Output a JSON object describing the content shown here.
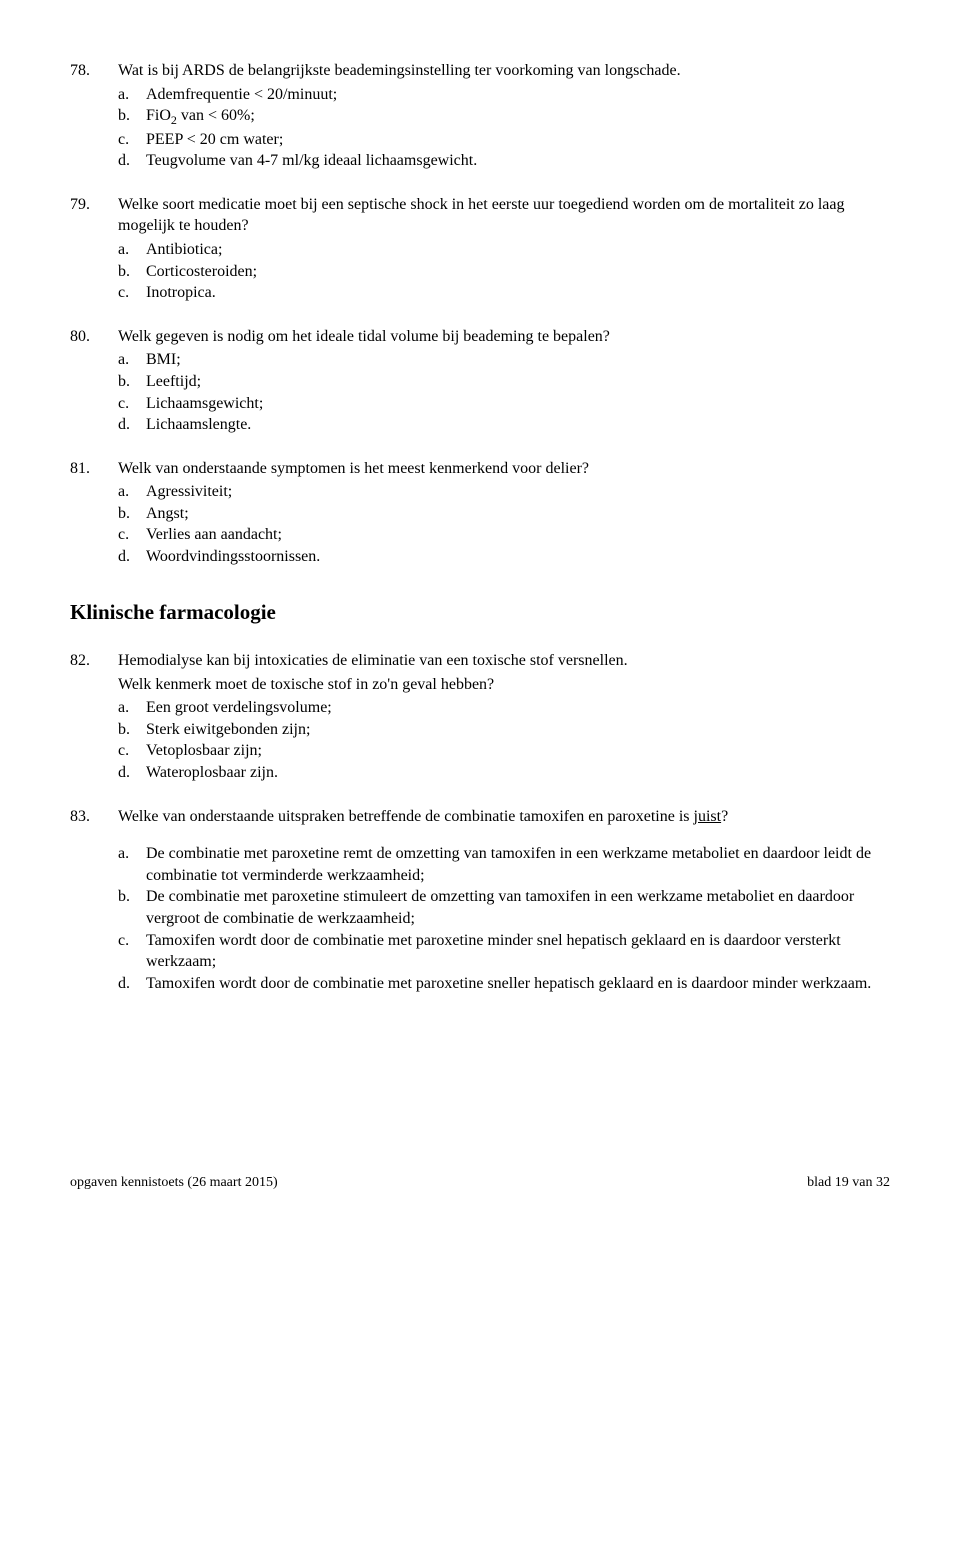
{
  "questions": [
    {
      "num": "78.",
      "stem_parts": [
        "Wat is bij ARDS  de belangrijkste beademingsinstelling ter voorkoming van longschade."
      ],
      "options": [
        {
          "l": "a.",
          "t": "Ademfrequentie < 20/minuut;"
        },
        {
          "l": "b.",
          "t_html": "FiO<sub>2</sub> van < 60%;"
        },
        {
          "l": "c.",
          "t": "PEEP < 20 cm water;"
        },
        {
          "l": "d.",
          "t": "Teugvolume van 4-7 ml/kg ideaal lichaamsgewicht."
        }
      ]
    },
    {
      "num": "79.",
      "stem_parts": [
        "Welke soort medicatie moet bij een septische shock in het eerste uur toegediend worden om de mortaliteit zo laag mogelijk te houden?"
      ],
      "options": [
        {
          "l": "a.",
          "t": "Antibiotica;"
        },
        {
          "l": "b.",
          "t": "Corticosteroiden;"
        },
        {
          "l": "c.",
          "t": "Inotropica."
        }
      ]
    },
    {
      "num": "80.",
      "stem_parts": [
        "Welk gegeven is nodig om het ideale tidal volume bij beademing te bepalen?"
      ],
      "options": [
        {
          "l": "a.",
          "t": "BMI;"
        },
        {
          "l": "b.",
          "t": "Leeftijd;"
        },
        {
          "l": "c.",
          "t": "Lichaamsgewicht;"
        },
        {
          "l": "d.",
          "t": "Lichaamslengte."
        }
      ]
    },
    {
      "num": "81.",
      "stem_parts": [
        "Welk van onderstaande symptomen is het meest kenmerkend voor delier?"
      ],
      "options": [
        {
          "l": "a.",
          "t": "Agressiviteit;"
        },
        {
          "l": "b.",
          "t": "Angst;"
        },
        {
          "l": "c.",
          "t": "Verlies aan aandacht;"
        },
        {
          "l": "d.",
          "t": "Woordvindingsstoornissen."
        }
      ]
    }
  ],
  "section_heading": "Klinische farmacologie",
  "questions2": [
    {
      "num": "82.",
      "stem_parts": [
        "Hemodialyse kan bij intoxicaties de eliminatie van een toxische stof versnellen.",
        "Welk kenmerk moet de toxische stof in zo'n geval hebben?"
      ],
      "options": [
        {
          "l": "a.",
          "t": "Een groot verdelingsvolume;"
        },
        {
          "l": "b.",
          "t": "Sterk eiwitgebonden zijn;"
        },
        {
          "l": "c.",
          "t": "Vetoplosbaar zijn;"
        },
        {
          "l": "d.",
          "t": "Wateroplosbaar zijn."
        }
      ]
    },
    {
      "num": "83.",
      "stem_html": "Welke van onderstaande uitspraken betreffende de combinatie tamoxifen en paroxetine is <span class=\"underline\">juist</span>?",
      "gap_after_stem": true,
      "options": [
        {
          "l": "a.",
          "t": "De combinatie met paroxetine remt de omzetting van tamoxifen in een werkzame metaboliet en daardoor leidt de combinatie tot verminderde werkzaamheid;"
        },
        {
          "l": "b.",
          "t": "De combinatie met paroxetine stimuleert de omzetting van tamoxifen in een werkzame metaboliet en daardoor vergroot de combinatie de werkzaamheid;"
        },
        {
          "l": "c.",
          "t": "Tamoxifen wordt door de combinatie met paroxetine minder snel hepatisch geklaard en is daardoor versterkt werkzaam;"
        },
        {
          "l": "d.",
          "t": "Tamoxifen wordt door de combinatie met paroxetine sneller hepatisch geklaard en is daardoor minder werkzaam."
        }
      ]
    }
  ],
  "footer": {
    "left": "opgaven kennistoets (26 maart 2015)",
    "right": "blad 19 van 32"
  }
}
